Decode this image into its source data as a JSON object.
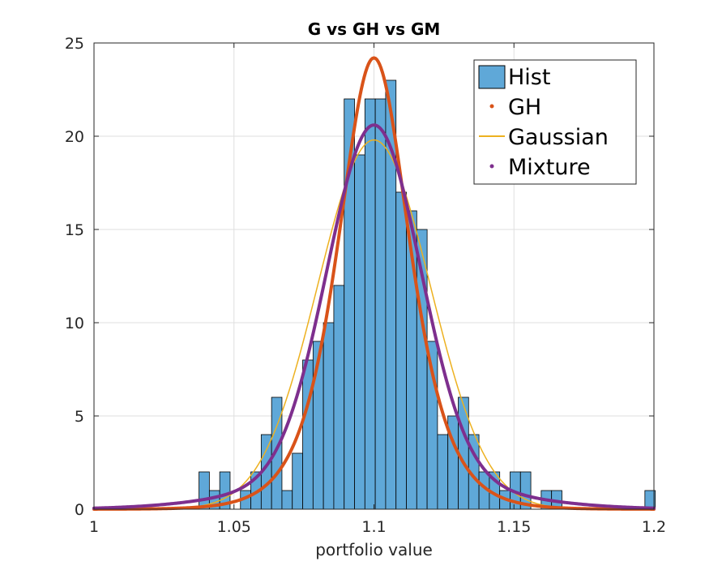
{
  "chart_data": {
    "type": "histogram+line",
    "title": "G vs GH vs GM",
    "xlabel": "portfolio value",
    "ylabel": "",
    "xlim": [
      1.0,
      1.2
    ],
    "ylim": [
      0,
      25
    ],
    "x_ticks": [
      "1",
      "1.05",
      "1.1",
      "1.15",
      "1.2"
    ],
    "x_tick_values": [
      1.0,
      1.05,
      1.1,
      1.15,
      1.2
    ],
    "y_ticks": [
      "0",
      "5",
      "10",
      "15",
      "20",
      "25"
    ],
    "y_tick_values": [
      0,
      5,
      10,
      15,
      20,
      25
    ],
    "grid": true,
    "legend_position": "top-right",
    "histogram": {
      "name": "Hist",
      "color": "#5fa8d8",
      "edge_color": "#000000",
      "bin_start": 1.0375,
      "bin_width": 0.003704,
      "counts": [
        2,
        1,
        2,
        0,
        1,
        2,
        4,
        6,
        1,
        3,
        8,
        9,
        10,
        12,
        22,
        19,
        22,
        22,
        23,
        17,
        16,
        15,
        9,
        4,
        5,
        6,
        4,
        2,
        2,
        1,
        2,
        2,
        0,
        1,
        1,
        0,
        0,
        0,
        0,
        0,
        0,
        0,
        0,
        1
      ]
    },
    "series": [
      {
        "name": "GH",
        "color": "#d95319",
        "type": "line",
        "mean": 1.1,
        "sd": 0.0135,
        "peak": 24.2,
        "line_width": 4
      },
      {
        "name": "Gaussian",
        "color": "#edb120",
        "type": "line",
        "mean": 1.1,
        "sd": 0.0201,
        "peak": 19.8,
        "line_width": 1.5
      },
      {
        "name": "Mixture",
        "color": "#7e2f8e",
        "type": "line",
        "peak": 20.6,
        "line_width": 4,
        "components": [
          {
            "weight": 0.82,
            "mean": 1.1,
            "sd": 0.0165
          },
          {
            "weight": 0.18,
            "mean": 1.1,
            "sd": 0.038
          }
        ]
      }
    ],
    "legend": [
      {
        "label": "Hist",
        "marker": "box"
      },
      {
        "label": "GH",
        "marker": "dot"
      },
      {
        "label": "Gaussian",
        "marker": "line"
      },
      {
        "label": "Mixture",
        "marker": "dot"
      }
    ]
  }
}
